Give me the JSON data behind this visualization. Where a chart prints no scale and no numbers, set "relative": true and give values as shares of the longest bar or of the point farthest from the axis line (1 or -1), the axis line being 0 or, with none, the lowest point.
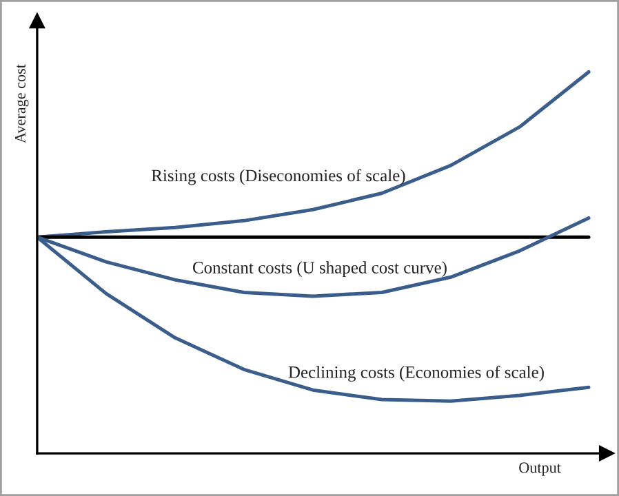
{
  "chart_data": {
    "type": "line",
    "relative": true,
    "xlabel": "Output",
    "ylabel": "Average cost",
    "categories": [
      null,
      null,
      null,
      null,
      null,
      null,
      null,
      null,
      null
    ],
    "series": [
      {
        "name": "Rising costs (Diseconomies of scale)",
        "color": "#3a5d8c",
        "values": [
          0.567,
          0.581,
          0.592,
          0.61,
          0.639,
          0.682,
          0.755,
          0.856,
          1.0
        ]
      },
      {
        "color": "#000000",
        "values": [
          0.567,
          0.567,
          0.567,
          0.567,
          0.567,
          0.567,
          0.567,
          0.567,
          0.567
        ]
      },
      {
        "name": "Constant costs (U shaped cost curve)",
        "color": "#3a5d8c",
        "values": [
          0.567,
          0.502,
          0.455,
          0.422,
          0.412,
          0.422,
          0.462,
          0.531,
          0.617
        ]
      },
      {
        "name": "Declining costs (Economies of scale)",
        "color": "#3a5d8c",
        "values": [
          0.567,
          0.419,
          0.303,
          0.22,
          0.166,
          0.141,
          0.137,
          0.152,
          0.173
        ]
      }
    ],
    "legend": false,
    "marker": "none",
    "line_style": "solid"
  }
}
